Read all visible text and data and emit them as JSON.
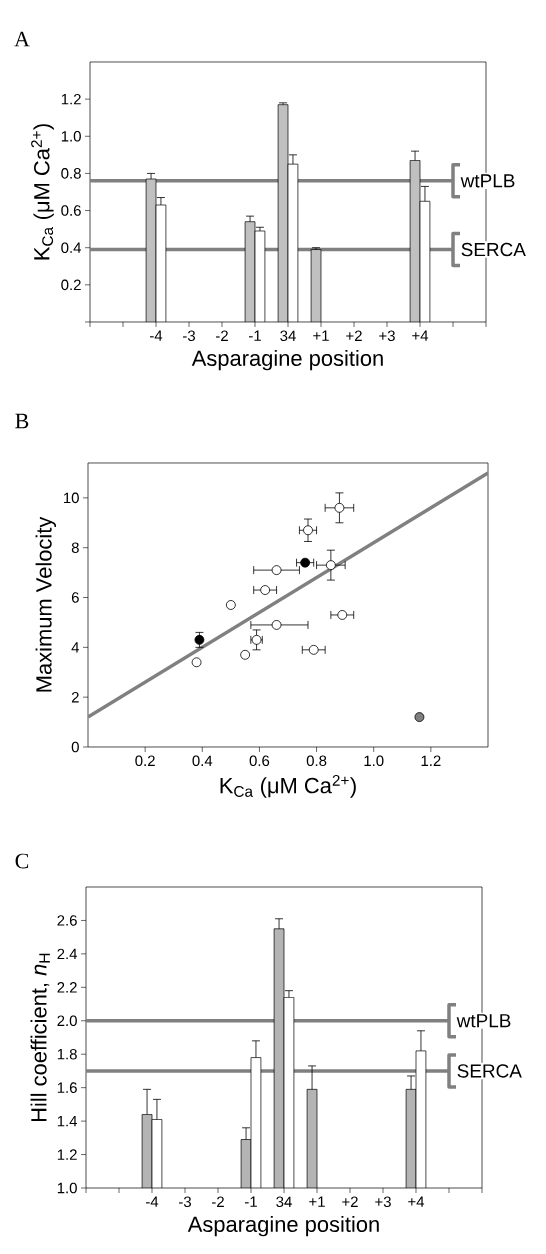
{
  "chart_data": [
    {
      "type": "bar",
      "title": "A",
      "xlabel": "Asparagine position",
      "ylabel": "K$_{Ca}$ (μM Ca$^{2+}$)",
      "categories": [
        "-4",
        "-3",
        "-2",
        "-1",
        "34",
        "+1",
        "+2",
        "+3",
        "+4"
      ],
      "series": [
        {
          "color": "#c0c0c0",
          "values": [
            0.77,
            null,
            null,
            0.54,
            1.17,
            0.39,
            null,
            null,
            0.87
          ],
          "errors": [
            0.03,
            null,
            null,
            0.03,
            0.01,
            0.01,
            null,
            null,
            0.05
          ]
        },
        {
          "color": "#ffffff",
          "values": [
            0.63,
            null,
            null,
            0.49,
            0.85,
            null,
            null,
            null,
            0.65
          ],
          "errors": [
            0.04,
            null,
            null,
            0.02,
            0.05,
            null,
            null,
            null,
            0.08
          ]
        }
      ],
      "ylim": [
        0,
        1.4
      ],
      "yticks": [
        {
          "value": 0,
          "label": null
        },
        0.2,
        0.4,
        0.6,
        0.8,
        {
          "value": 1,
          "label": "1.0"
        },
        1.2
      ],
      "ref_lines": [
        {
          "axis": "y",
          "value": 0.76,
          "label": "wtPLB",
          "color": "#808080"
        },
        {
          "axis": "y",
          "value": 0.39,
          "label": "SERCA",
          "color": "#808080"
        }
      ]
    },
    {
      "type": "scatter",
      "title": "B",
      "xlabel": "K$_{Ca}$ (μM Ca$^{2+}$)",
      "ylabel": "Maximum Velocity",
      "series": [
        {
          "type": "line",
          "color": "#808080",
          "marker": "none",
          "x": [
            0,
            1.4
          ],
          "values": [
            1.2,
            11.0
          ]
        },
        {
          "color": "#ffffff",
          "marker": "circle",
          "x": [
            0.38,
            0.5,
            0.55,
            0.59,
            0.62,
            0.66,
            0.66,
            0.77,
            0.79,
            0.85,
            0.88,
            0.89
          ],
          "values": [
            3.4,
            5.7,
            3.7,
            4.3,
            6.3,
            7.1,
            4.9,
            8.7,
            3.9,
            7.3,
            9.6,
            5.3
          ],
          "errors": [
            null,
            null,
            null,
            0.4,
            null,
            null,
            null,
            0.45,
            null,
            0.6,
            0.6,
            null
          ],
          "xerrors": [
            null,
            null,
            null,
            0.02,
            0.04,
            0.08,
            [
              0.57,
              0.77
            ],
            0.03,
            0.04,
            0.05,
            0.05,
            0.04
          ]
        },
        {
          "color": "#000000",
          "marker": "circle",
          "x": [
            0.39,
            0.76
          ],
          "values": [
            4.3,
            7.4
          ],
          "errors": [
            0.3,
            null
          ],
          "xerrors": [
            null,
            0.03
          ]
        },
        {
          "color": "#808080",
          "marker": "circle",
          "x": [
            1.16
          ],
          "values": [
            1.2
          ]
        }
      ],
      "xlim": [
        0,
        1.4
      ],
      "xticks": [
        0.2,
        0.4,
        0.6,
        0.8,
        {
          "value": 1,
          "label": "1.0"
        },
        1.2
      ],
      "ylim": [
        0,
        11.4
      ],
      "yticks": [
        0,
        2,
        4,
        6,
        8,
        10
      ]
    },
    {
      "type": "bar",
      "title": "C",
      "xlabel": "Asparagine position",
      "ylabel": "Hill coefficient, *n*$_{H}$",
      "categories": [
        "-4",
        "-3",
        "-2",
        "-1",
        "34",
        "+1",
        "+2",
        "+3",
        "+4"
      ],
      "series": [
        {
          "color": "#b4b4b4",
          "values": [
            1.44,
            null,
            null,
            1.29,
            2.55,
            1.59,
            null,
            null,
            1.59
          ],
          "errors": [
            0.15,
            null,
            null,
            0.07,
            0.06,
            0.14,
            null,
            null,
            0.08
          ]
        },
        {
          "color": "#ffffff",
          "values": [
            1.41,
            null,
            null,
            1.78,
            2.14,
            null,
            null,
            null,
            1.82
          ],
          "errors": [
            0.12,
            null,
            null,
            0.1,
            0.04,
            null,
            null,
            null,
            0.12
          ]
        }
      ],
      "ylim": [
        1.0,
        2.8
      ],
      "yticks": [
        {
          "value": 1,
          "label": "1.0"
        },
        1.2,
        1.4,
        1.6,
        1.8,
        {
          "value": 2,
          "label": "2.0"
        },
        2.2,
        2.4,
        2.6
      ],
      "ref_lines": [
        {
          "axis": "y",
          "value": 2.0,
          "label": "wtPLB",
          "color": "#808080"
        },
        {
          "axis": "y",
          "value": 1.7,
          "label": "SERCA",
          "color": "#808080"
        }
      ]
    }
  ]
}
